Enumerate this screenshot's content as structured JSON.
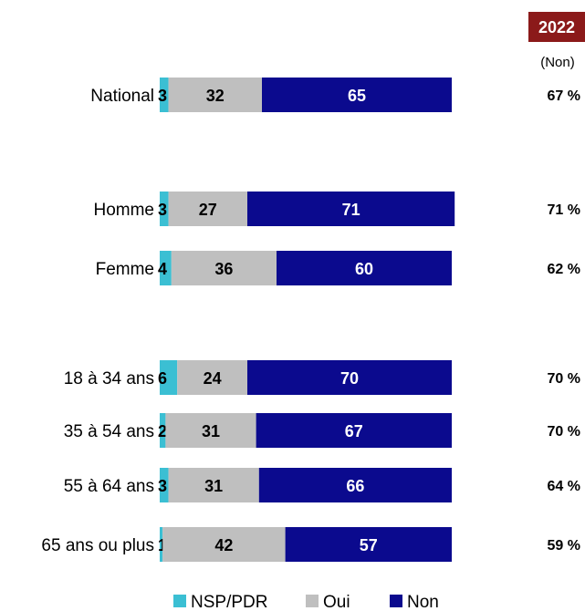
{
  "chart_data": {
    "type": "bar",
    "orientation": "horizontal",
    "stacked": true,
    "categories": [
      "National",
      "Homme",
      "Femme",
      "18 à 34 ans",
      "35 à 54 ans",
      "55 à 64 ans",
      "65 ans ou plus"
    ],
    "series": [
      {
        "name": "NSP/PDR",
        "color": "#3bbfd3",
        "values": [
          3,
          3,
          4,
          6,
          2,
          3,
          1
        ]
      },
      {
        "name": "Oui",
        "color": "#bfbfbf",
        "values": [
          32,
          27,
          36,
          24,
          31,
          31,
          42
        ]
      },
      {
        "name": "Non",
        "color": "#0b0a8e",
        "values": [
          65,
          71,
          60,
          70,
          67,
          66,
          57
        ]
      }
    ],
    "comparison": {
      "header": "2022",
      "header_color": "#8b1a1a",
      "subheader": "(Non)",
      "values": [
        "67 %",
        "71 %",
        "62 %",
        "70 %",
        "70 %",
        "64 %",
        "59 %"
      ]
    },
    "legend_position": "bottom",
    "xlim": [
      0,
      100
    ],
    "grid": false
  }
}
